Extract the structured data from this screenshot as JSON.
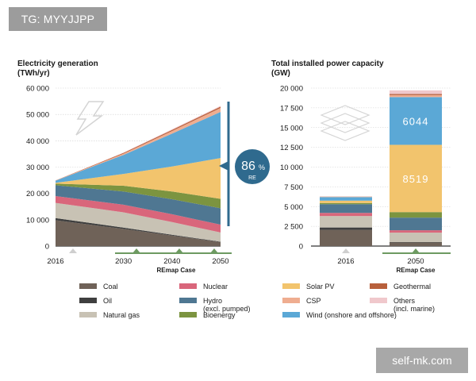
{
  "watermarks": {
    "top_left": "TG: MYYJJPP",
    "bottom_right": "self-mk.com"
  },
  "colors": {
    "coal": "#6f6258",
    "oil": "#3f3f3f",
    "natural_gas": "#c8c2b4",
    "nuclear": "#d9667b",
    "hydro": "#4f7792",
    "bioenergy": "#7c9440",
    "solar_pv": "#f2c46d",
    "csp": "#efad90",
    "wind": "#5ba8d6",
    "geothermal": "#b8603c",
    "others": "#f0c8cc",
    "accent": "#2f6a8e",
    "axis": "#333333",
    "grid": "#cfcfcf"
  },
  "legend": [
    {
      "key": "coal",
      "label": "Coal"
    },
    {
      "key": "nuclear",
      "label": "Nuclear"
    },
    {
      "key": "solar_pv",
      "label": "Solar PV"
    },
    {
      "key": "geothermal",
      "label": "Geothermal"
    },
    {
      "key": "oil",
      "label": "Oil"
    },
    {
      "key": "hydro",
      "label": "Hydro\n(excl. pumped)"
    },
    {
      "key": "csp",
      "label": "CSP"
    },
    {
      "key": "others",
      "label": "Others\n(incl. marine)"
    },
    {
      "key": "natural_gas",
      "label": "Natural gas"
    },
    {
      "key": "bioenergy",
      "label": "Bioenergy"
    },
    {
      "key": "wind",
      "label": "Wind (onshore and offshore)"
    }
  ],
  "chart_data": [
    {
      "type": "area",
      "title": "Electricity generation\n(TWh/yr)",
      "x": [
        2016,
        2030,
        2040,
        2050
      ],
      "x_labels": [
        "2016",
        "2030",
        "2040",
        "2050"
      ],
      "x_sublabel": "REmap Case",
      "ylim": [
        0,
        60000
      ],
      "yticks": [
        0,
        10000,
        20000,
        30000,
        40000,
        50000,
        60000
      ],
      "ytick_labels": [
        "0",
        "10 000",
        "20 000",
        "30 000",
        "40 000",
        "50 000",
        "60 000"
      ],
      "grid": true,
      "series": [
        {
          "key": "coal",
          "values": [
            9800,
            6500,
            4000,
            1500
          ]
        },
        {
          "key": "oil",
          "values": [
            800,
            500,
            300,
            150
          ]
        },
        {
          "key": "natural_gas",
          "values": [
            5800,
            5800,
            4800,
            3500
          ]
        },
        {
          "key": "nuclear",
          "values": [
            2600,
            2900,
            3000,
            3000
          ]
        },
        {
          "key": "hydro",
          "values": [
            4100,
            5000,
            5700,
            6200
          ]
        },
        {
          "key": "bioenergy",
          "values": [
            600,
            2200,
            2900,
            3600
          ]
        },
        {
          "key": "solar_pv",
          "values": [
            300,
            4500,
            9500,
            15500
          ]
        },
        {
          "key": "wind",
          "values": [
            800,
            7200,
            12500,
            17500
          ]
        },
        {
          "key": "csp",
          "values": [
            50,
            500,
            1000,
            1500
          ]
        },
        {
          "key": "geothermal",
          "values": [
            50,
            300,
            400,
            500
          ]
        },
        {
          "key": "others",
          "values": [
            0,
            100,
            250,
            300
          ]
        }
      ],
      "annotation": {
        "value": "86",
        "unit": "%",
        "sub": "RE"
      }
    },
    {
      "type": "bar",
      "stacked": true,
      "title": "Total installed power capacity\n(GW)",
      "categories": [
        "2016",
        "2050"
      ],
      "x_sublabel": "REmap Case",
      "ylim": [
        0,
        20000
      ],
      "yticks": [
        0,
        2500,
        5000,
        7500,
        10000,
        12500,
        15000,
        17500,
        20000
      ],
      "ytick_labels": [
        "0",
        "2 500",
        "5 000",
        "7 500",
        "10 000",
        "12 500",
        "15 000",
        "17 500",
        "20 000"
      ],
      "grid": true,
      "series": [
        {
          "key": "coal",
          "values": [
            2050,
            450
          ]
        },
        {
          "key": "oil",
          "values": [
            300,
            50
          ]
        },
        {
          "key": "natural_gas",
          "values": [
            1450,
            1200
          ]
        },
        {
          "key": "nuclear",
          "values": [
            400,
            300
          ]
        },
        {
          "key": "hydro",
          "values": [
            1100,
            1600
          ]
        },
        {
          "key": "bioenergy",
          "values": [
            150,
            700
          ]
        },
        {
          "key": "solar_pv",
          "values": [
            300,
            8519
          ]
        },
        {
          "key": "wind",
          "values": [
            450,
            6044
          ]
        },
        {
          "key": "csp",
          "values": [
            50,
            250
          ]
        },
        {
          "key": "geothermal",
          "values": [
            20,
            150
          ]
        },
        {
          "key": "others",
          "values": [
            10,
            450
          ]
        }
      ],
      "segment_labels": [
        {
          "category": "2050",
          "key": "wind",
          "text": "6044"
        },
        {
          "category": "2050",
          "key": "solar_pv",
          "text": "8519"
        }
      ]
    }
  ]
}
